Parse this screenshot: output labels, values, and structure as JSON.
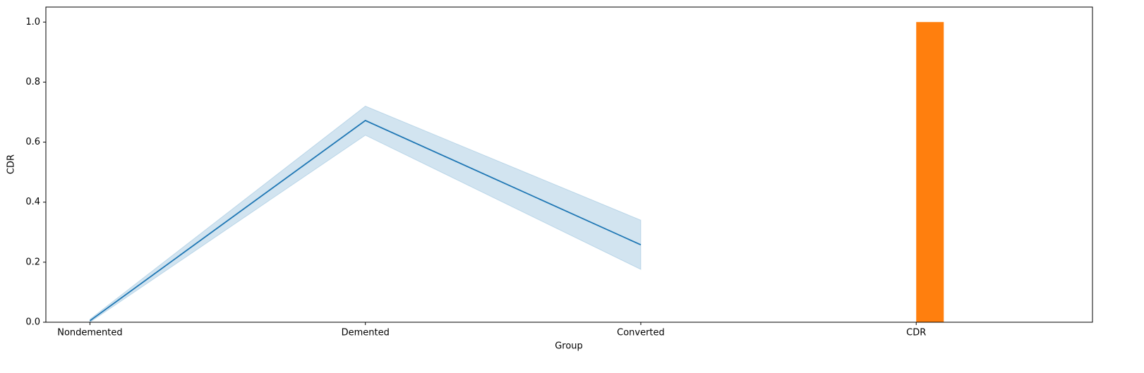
{
  "chart_data": {
    "type": "line",
    "x_label": "Group",
    "y_label": "CDR",
    "categories": [
      "Nondemented",
      "Demented",
      "Converted",
      "CDR"
    ],
    "line": {
      "color": "#1f77b4",
      "values": [
        0.005,
        0.672,
        0.258,
        null
      ],
      "ci_lower": [
        0.0,
        0.623,
        0.176,
        null
      ],
      "ci_upper": [
        0.01,
        0.72,
        0.34,
        null
      ]
    },
    "bar": {
      "color": "#ff7f0e",
      "values": [
        null,
        null,
        null,
        1.0
      ],
      "width": 0.1
    },
    "xlim": [
      -0.16,
      3.64
    ],
    "ylim": [
      0,
      1.05
    ],
    "yticks": [
      {
        "value": 0,
        "label": "0.0"
      },
      0.2,
      0.4,
      0.6,
      0.8,
      {
        "value": 1,
        "label": "1.0"
      }
    ]
  }
}
